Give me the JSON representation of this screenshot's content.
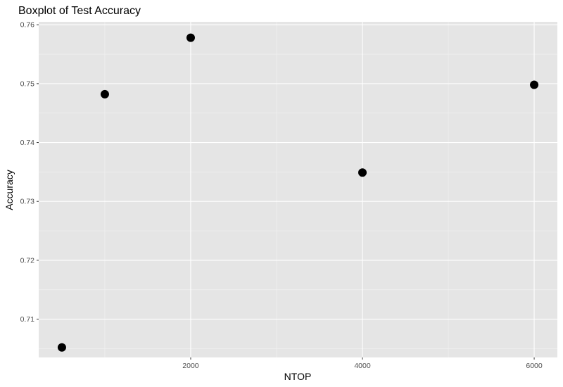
{
  "chart_data": {
    "type": "scatter",
    "title": "Boxplot of Test Accuracy",
    "xlabel": "NTOP",
    "ylabel": "Accuracy",
    "x": [
      500,
      1000,
      2000,
      4000,
      6000
    ],
    "y": [
      0.7052,
      0.7482,
      0.7578,
      0.7349,
      0.7498
    ],
    "xlim": [
      230,
      6270
    ],
    "ylim": [
      0.7035,
      0.7605
    ],
    "x_ticks": [
      2000,
      4000,
      6000
    ],
    "x_tick_labels": [
      "2000",
      "4000",
      "6000"
    ],
    "x_minor_ticks": [
      1000,
      3000,
      5000
    ],
    "y_ticks": [
      0.71,
      0.72,
      0.73,
      0.74,
      0.75,
      0.76
    ],
    "y_tick_labels": [
      "0.71",
      "0.72",
      "0.73",
      "0.74",
      "0.75",
      "0.76"
    ],
    "grid": true,
    "legend": "none",
    "colors": {
      "panel_background": "#e5e5e5",
      "grid_major": "#ffffff",
      "grid_minor": "#f2f2f2",
      "point": "#000000",
      "tick_label": "#4d4d4d"
    }
  }
}
